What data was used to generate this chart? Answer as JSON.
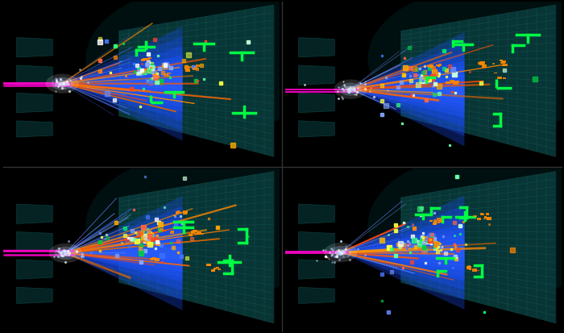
{
  "figsize": [
    7.0,
    4.13
  ],
  "dpi": 100,
  "bg_color": "#000000",
  "panel_bg": "#000000",
  "cone_color": "#1a4dff",
  "cone_color2": "#3366ff",
  "track_colors_orange": [
    "#ff6600",
    "#ff8800",
    "#ff5500",
    "#dd6600",
    "#ff7700",
    "#ee5500",
    "#ff9900",
    "#ff4400"
  ],
  "track_colors_magenta": [
    "#ff00bb",
    "#ee00aa",
    "#ff33cc"
  ],
  "track_colors_white": [
    "#aabbff",
    "#8899cc",
    "#99aadd",
    "#bbccff"
  ],
  "green_marker_color": "#00ff44",
  "orange_marker_color": "#ff8800",
  "grid_plate_color": "#0a3a3a",
  "grid_line_color": "#1a6666",
  "block_color": "#062828",
  "block_edge_color": "#0a4040"
}
